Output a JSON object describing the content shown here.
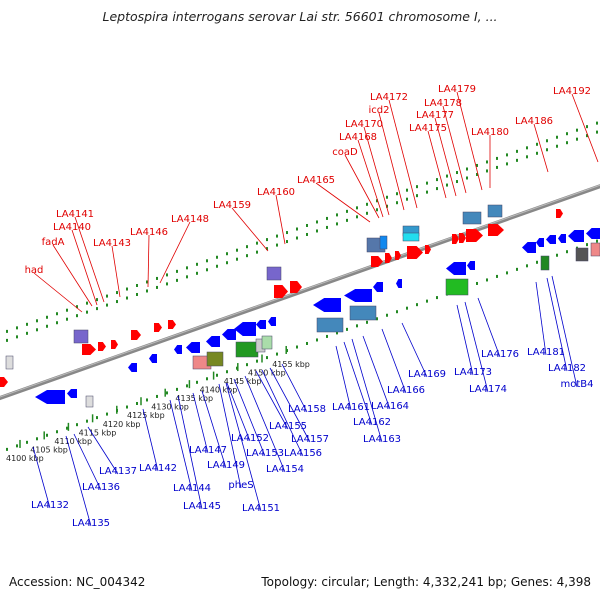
{
  "title": "Leptospira interrogans serovar Lai str. 56601 chromosome I, ...",
  "footer": {
    "accession": "Accession: NC_004342",
    "summary": "Topology: circular; Length: 4,332,241 bp; Genes: 4,398"
  },
  "colors": {
    "forward_label": "#e00000",
    "reverse_label": "#0000cc",
    "axis": "#888888",
    "tick": "#228822",
    "forward_arrow": "#ff0000",
    "reverse_arrow": "#0000ff"
  },
  "scale_ticks": [
    {
      "label": "4100 kbp",
      "kbp": 4100
    },
    {
      "label": "4105 kbp",
      "kbp": 4105
    },
    {
      "label": "4110 kbp",
      "kbp": 4110
    },
    {
      "label": "4115 kbp",
      "kbp": 4115
    },
    {
      "label": "4120 kbp",
      "kbp": 4120
    },
    {
      "label": "4125 kbp",
      "kbp": 4125
    },
    {
      "label": "4130 kbp",
      "kbp": 4130
    },
    {
      "label": "4135 kbp",
      "kbp": 4135
    },
    {
      "label": "4140 kbp",
      "kbp": 4140
    },
    {
      "label": "4145 kbp",
      "kbp": 4145
    },
    {
      "label": "4150 kbp",
      "kbp": 4150
    },
    {
      "label": "4155 kbp",
      "kbp": 4155
    }
  ],
  "forward_labels": [
    "had",
    "fadA",
    "LA4140",
    "LA4141",
    "LA4143",
    "LA4146",
    "LA4148",
    "LA4159",
    "LA4160",
    "LA4165",
    "coaD",
    "LA4168",
    "LA4170",
    "icd2",
    "LA4172",
    "LA4175",
    "LA4177",
    "LA4178",
    "LA4179",
    "LA4180",
    "LA4186",
    "LA4192"
  ],
  "reverse_labels": [
    "LA4132",
    "LA4135",
    "LA4136",
    "LA4137",
    "LA4142",
    "LA4144",
    "LA4145",
    "LA4147",
    "LA4149",
    "pheS",
    "LA4151",
    "LA4152",
    "LA4153",
    "LA4154",
    "LA4155",
    "LA4156",
    "LA4157",
    "LA4158",
    "LA4161",
    "LA4162",
    "LA4163",
    "LA4164",
    "LA4166",
    "LA4169",
    "LA4173",
    "LA4174",
    "LA4176",
    "LA4181",
    "LA4182",
    "motB4"
  ]
}
